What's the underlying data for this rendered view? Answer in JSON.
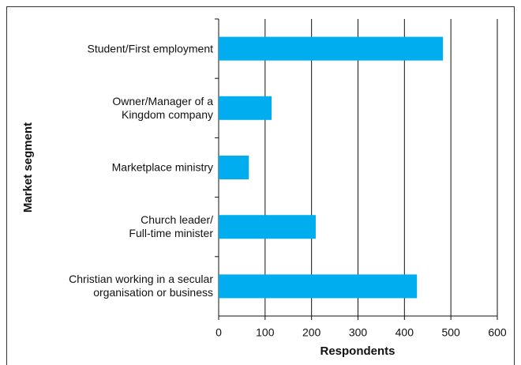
{
  "chart_data": {
    "type": "bar",
    "orientation": "horizontal",
    "categories": [
      "Student/First employment",
      "Owner/Manager of a\nKingdom company",
      "Marketplace ministry",
      "Church leader/\nFull-time minister",
      "Christian working in a secular\norganisation or business"
    ],
    "values": [
      483,
      114,
      65,
      209,
      427
    ],
    "color": "#00aeef",
    "xlabel": "Respondents",
    "ylabel": "Market segment",
    "xlim": [
      0,
      600
    ],
    "xticks": [
      0,
      100,
      200,
      300,
      400,
      500,
      600
    ],
    "grid": true
  }
}
